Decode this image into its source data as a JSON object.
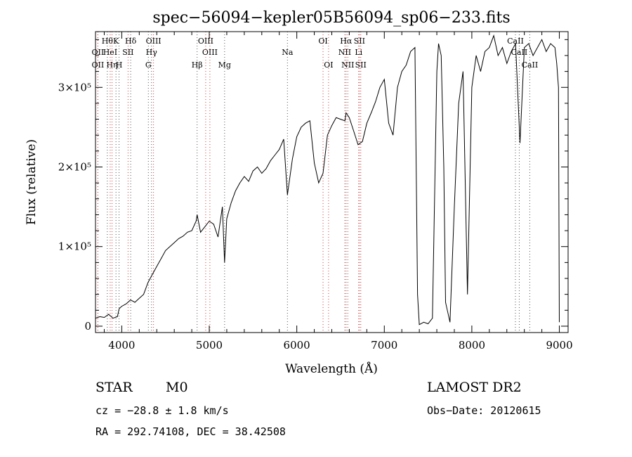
{
  "chart_data": {
    "type": "line",
    "title": "spec−56094−kepler05B56094_sp06−233.fits",
    "xlabel": "Wavelength (Å)",
    "ylabel": "Flux (relative)",
    "xlim": [
      3700,
      9100
    ],
    "ylim": [
      -8000,
      370000
    ],
    "x_ticks": [
      4000,
      5000,
      6000,
      7000,
      8000,
      9000
    ],
    "y_ticks": [
      {
        "value": 0,
        "label": "0"
      },
      {
        "value": 100000,
        "label": "1×10⁵"
      },
      {
        "value": 200000,
        "label": "2×10⁵"
      },
      {
        "value": 300000,
        "label": "3×10⁵"
      }
    ],
    "series": [
      {
        "color": "#000000",
        "x": [
          3700,
          3750,
          3800,
          3850,
          3900,
          3950,
          3970,
          4000,
          4050,
          4100,
          4150,
          4200,
          4250,
          4300,
          4350,
          4400,
          4450,
          4500,
          4550,
          4600,
          4650,
          4700,
          4750,
          4800,
          4850,
          4861,
          4900,
          4950,
          5000,
          5050,
          5100,
          5150,
          5175,
          5200,
          5250,
          5300,
          5350,
          5400,
          5450,
          5500,
          5550,
          5600,
          5650,
          5700,
          5750,
          5800,
          5850,
          5893,
          5950,
          6000,
          6050,
          6100,
          6150,
          6200,
          6250,
          6300,
          6350,
          6400,
          6450,
          6500,
          6550,
          6563,
          6600,
          6650,
          6700,
          6750,
          6800,
          6850,
          6900,
          6950,
          7000,
          7050,
          7100,
          7150,
          7200,
          7250,
          7300,
          7350,
          7380,
          7400,
          7450,
          7500,
          7550,
          7600,
          7620,
          7650,
          7680,
          7700,
          7750,
          7800,
          7850,
          7900,
          7950,
          8000,
          8050,
          8100,
          8150,
          8200,
          8250,
          8300,
          8350,
          8400,
          8450,
          8500,
          8550,
          8600,
          8650,
          8700,
          8750,
          8800,
          8850,
          8900,
          8950,
          8970,
          8990,
          9000
        ],
        "y": [
          10000,
          12000,
          11000,
          15000,
          10000,
          12000,
          22000,
          25000,
          28000,
          33000,
          30000,
          35000,
          40000,
          55000,
          65000,
          75000,
          85000,
          95000,
          100000,
          105000,
          110000,
          113000,
          118000,
          120000,
          132000,
          140000,
          118000,
          125000,
          132000,
          128000,
          112000,
          150000,
          80000,
          135000,
          155000,
          170000,
          180000,
          188000,
          182000,
          195000,
          200000,
          192000,
          198000,
          208000,
          215000,
          222000,
          235000,
          165000,
          210000,
          238000,
          250000,
          255000,
          258000,
          205000,
          180000,
          192000,
          240000,
          252000,
          262000,
          260000,
          258000,
          268000,
          262000,
          245000,
          228000,
          232000,
          255000,
          268000,
          282000,
          300000,
          310000,
          255000,
          240000,
          300000,
          320000,
          328000,
          345000,
          350000,
          40000,
          2000,
          5000,
          3000,
          10000,
          320000,
          355000,
          340000,
          200000,
          30000,
          5000,
          150000,
          280000,
          320000,
          40000,
          300000,
          340000,
          320000,
          345000,
          350000,
          365000,
          340000,
          350000,
          330000,
          345000,
          355000,
          230000,
          350000,
          355000,
          340000,
          350000,
          360000,
          345000,
          355000,
          350000,
          330000,
          300000,
          5000
        ]
      }
    ],
    "lines": {
      "emission": [
        {
          "w": 3727,
          "label": "OII",
          "row": 1
        },
        {
          "w": 3727,
          "label": "OII",
          "row": 2
        },
        {
          "w": 3868,
          "label": "HeI",
          "row": 1
        },
        {
          "w": 3889,
          "label": "Hη",
          "row": 2
        },
        {
          "w": 4072,
          "label": "SII",
          "row": 1
        },
        {
          "w": 4363,
          "label": "OIII",
          "row": 0
        },
        {
          "w": 4959,
          "label": "OIII",
          "row": 0
        },
        {
          "w": 5007,
          "label": "OIII",
          "row": 1
        },
        {
          "w": 6300,
          "label": "OI",
          "row": 0
        },
        {
          "w": 6363,
          "label": "OI",
          "row": 2
        },
        {
          "w": 6548,
          "label": "NII",
          "row": 1
        },
        {
          "w": 6583,
          "label": "NII",
          "row": 2
        },
        {
          "w": 6716,
          "label": "SII",
          "row": 0
        },
        {
          "w": 6731,
          "label": "SII",
          "row": 2
        },
        {
          "w": 6707,
          "label": "Li",
          "row": 1
        }
      ],
      "absorption": [
        {
          "w": 3835,
          "label": "Hθ",
          "row": 0
        },
        {
          "w": 3934,
          "label": "K",
          "row": 0
        },
        {
          "w": 3969,
          "label": "H",
          "row": 2
        },
        {
          "w": 4102,
          "label": "Hδ",
          "row": 0
        },
        {
          "w": 4304,
          "label": "G",
          "row": 2
        },
        {
          "w": 4340,
          "label": "Hγ",
          "row": 1
        },
        {
          "w": 4861,
          "label": "Hβ",
          "row": 2
        },
        {
          "w": 5175,
          "label": "Mg",
          "row": 2
        },
        {
          "w": 5893,
          "label": "Na",
          "row": 1
        },
        {
          "w": 6563,
          "label": "Hα",
          "row": 0
        },
        {
          "w": 8498,
          "label": "CaII",
          "row": 0
        },
        {
          "w": 8542,
          "label": "CaII",
          "row": 1
        },
        {
          "w": 8662,
          "label": "CaII",
          "row": 2
        }
      ]
    }
  },
  "info": {
    "object_class": "STAR",
    "subclass": "M0",
    "survey": "LAMOST DR2",
    "cz": "cz = −28.8 ± 1.8 km/s",
    "obs_date": "Obs−Date: 20120615",
    "coords": "RA = 292.74108, DEC =  38.42508"
  }
}
